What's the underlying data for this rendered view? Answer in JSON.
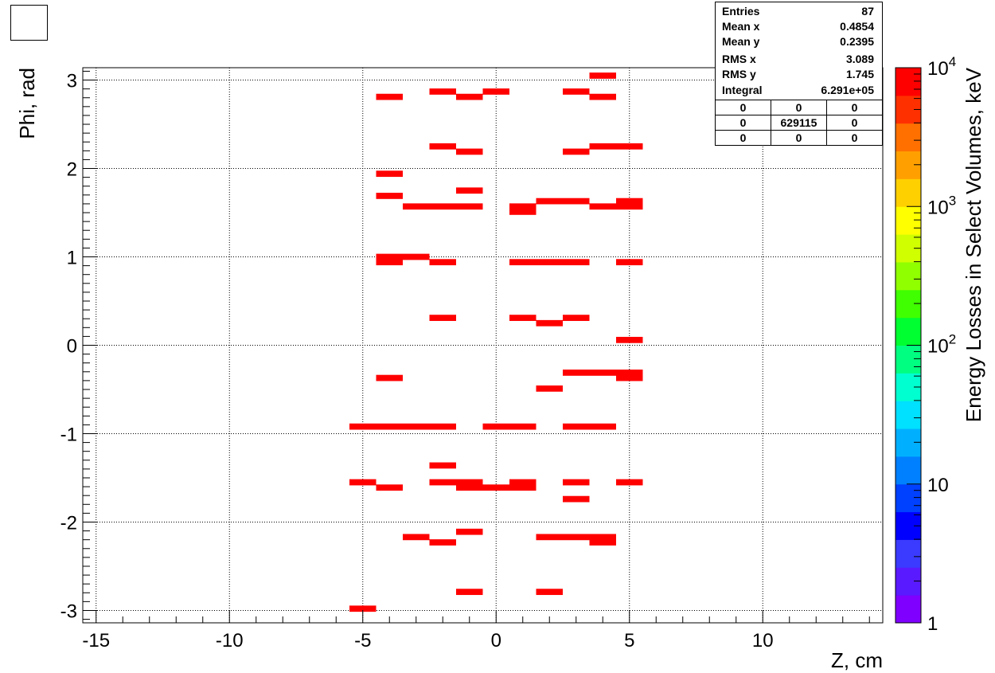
{
  "chart_data": {
    "type": "heatmap",
    "xlabel": "Z, cm",
    "ylabel": "Phi, rad",
    "zlabel": "Energy Losses in Select Volumes, keV",
    "xlim": [
      -15.5,
      14.5
    ],
    "ylim": [
      -3.14,
      3.14
    ],
    "x_ticks": [
      -15,
      -10,
      -5,
      0,
      5,
      10
    ],
    "y_ticks": [
      -3,
      -2,
      -1,
      0,
      1,
      2,
      3
    ],
    "z_scale": "log",
    "zlim": [
      1,
      10000
    ],
    "z_ticks": [
      {
        "value": 1,
        "label": "1"
      },
      {
        "value": 10,
        "label": "10"
      },
      {
        "value": 100,
        "label": "10",
        "sup": "2"
      },
      {
        "value": 1000,
        "label": "10",
        "sup": "3"
      },
      {
        "value": 10000,
        "label": "10",
        "sup": "4"
      }
    ],
    "grid": true,
    "bin_width": 1.0,
    "bin_height": 0.07,
    "bins_note": "Each bin: x = bin center (cm), y = bin center (rad); all visible bins render at saturated red (≥1e4 keV)",
    "bins": [
      {
        "x": 4.0,
        "y": 3.05
      },
      {
        "x": -4.0,
        "y": 2.81
      },
      {
        "x": -2.0,
        "y": 2.87
      },
      {
        "x": -1.0,
        "y": 2.81
      },
      {
        "x": 0.0,
        "y": 2.87
      },
      {
        "x": 3.0,
        "y": 2.87
      },
      {
        "x": 4.0,
        "y": 2.81
      },
      {
        "x": -2.0,
        "y": 2.25
      },
      {
        "x": -1.0,
        "y": 2.19
      },
      {
        "x": 3.0,
        "y": 2.19
      },
      {
        "x": 4.0,
        "y": 2.25
      },
      {
        "x": 5.0,
        "y": 2.25
      },
      {
        "x": -4.0,
        "y": 1.94
      },
      {
        "x": -1.0,
        "y": 1.75
      },
      {
        "x": -4.0,
        "y": 1.69
      },
      {
        "x": 2.0,
        "y": 1.63
      },
      {
        "x": 3.0,
        "y": 1.63
      },
      {
        "x": 5.0,
        "y": 1.63
      },
      {
        "x": -3.0,
        "y": 1.57
      },
      {
        "x": -2.0,
        "y": 1.57
      },
      {
        "x": -1.0,
        "y": 1.57
      },
      {
        "x": 1.0,
        "y": 1.57
      },
      {
        "x": 4.0,
        "y": 1.57
      },
      {
        "x": 5.0,
        "y": 1.57
      },
      {
        "x": 1.0,
        "y": 1.51
      },
      {
        "x": -4.0,
        "y": 1.0
      },
      {
        "x": -3.0,
        "y": 1.0
      },
      {
        "x": -4.0,
        "y": 0.94
      },
      {
        "x": -2.0,
        "y": 0.94
      },
      {
        "x": 1.0,
        "y": 0.94
      },
      {
        "x": 2.0,
        "y": 0.94
      },
      {
        "x": 3.0,
        "y": 0.94
      },
      {
        "x": 5.0,
        "y": 0.94
      },
      {
        "x": -2.0,
        "y": 0.31
      },
      {
        "x": 1.0,
        "y": 0.31
      },
      {
        "x": 3.0,
        "y": 0.31
      },
      {
        "x": 2.0,
        "y": 0.25
      },
      {
        "x": 5.0,
        "y": 0.06
      },
      {
        "x": 3.0,
        "y": -0.31
      },
      {
        "x": 4.0,
        "y": -0.31
      },
      {
        "x": 5.0,
        "y": -0.31
      },
      {
        "x": -4.0,
        "y": -0.37
      },
      {
        "x": 5.0,
        "y": -0.37
      },
      {
        "x": 2.0,
        "y": -0.49
      },
      {
        "x": -5.0,
        "y": -0.92
      },
      {
        "x": -4.0,
        "y": -0.92
      },
      {
        "x": -3.0,
        "y": -0.92
      },
      {
        "x": -2.0,
        "y": -0.92
      },
      {
        "x": 0.0,
        "y": -0.92
      },
      {
        "x": 1.0,
        "y": -0.92
      },
      {
        "x": 3.0,
        "y": -0.92
      },
      {
        "x": 4.0,
        "y": -0.92
      },
      {
        "x": -2.0,
        "y": -1.36
      },
      {
        "x": -5.0,
        "y": -1.55
      },
      {
        "x": -2.0,
        "y": -1.55
      },
      {
        "x": -1.0,
        "y": -1.55
      },
      {
        "x": 1.0,
        "y": -1.55
      },
      {
        "x": 3.0,
        "y": -1.55
      },
      {
        "x": 5.0,
        "y": -1.55
      },
      {
        "x": -4.0,
        "y": -1.61
      },
      {
        "x": -1.0,
        "y": -1.61
      },
      {
        "x": 0.0,
        "y": -1.61
      },
      {
        "x": 1.0,
        "y": -1.61
      },
      {
        "x": 3.0,
        "y": -1.74
      },
      {
        "x": -1.0,
        "y": -2.11
      },
      {
        "x": -3.0,
        "y": -2.17
      },
      {
        "x": 2.0,
        "y": -2.17
      },
      {
        "x": 3.0,
        "y": -2.17
      },
      {
        "x": 4.0,
        "y": -2.17
      },
      {
        "x": -2.0,
        "y": -2.23
      },
      {
        "x": 4.0,
        "y": -2.23
      },
      {
        "x": -1.0,
        "y": -2.79
      },
      {
        "x": 2.0,
        "y": -2.79
      },
      {
        "x": -5.0,
        "y": -2.98
      }
    ]
  },
  "stats": {
    "rows": [
      {
        "label": "Entries",
        "value": "87"
      },
      {
        "label": "Mean x",
        "value": "0.4854"
      },
      {
        "label": "Mean y",
        "value": "0.2395"
      },
      {
        "label": "RMS x",
        "value": "3.089"
      },
      {
        "label": "RMS y",
        "value": "1.745"
      },
      {
        "label": "Integral",
        "value": "6.291e+05"
      }
    ],
    "grid": [
      [
        "0",
        "0",
        "0"
      ],
      [
        "0",
        "629115",
        "0"
      ],
      [
        "0",
        "0",
        "0"
      ]
    ]
  },
  "colors": {
    "bin_fill": "#ff0000",
    "palette": [
      "#7f00ff",
      "#5a1aff",
      "#3b3bff",
      "#0000ff",
      "#0040ff",
      "#0080ff",
      "#00b0ff",
      "#00e0ff",
      "#00ffd0",
      "#00ff80",
      "#00ff30",
      "#40ff00",
      "#90ff00",
      "#d0ff00",
      "#ffff00",
      "#ffd000",
      "#ffa000",
      "#ff7000",
      "#ff3000",
      "#ff0000"
    ]
  }
}
